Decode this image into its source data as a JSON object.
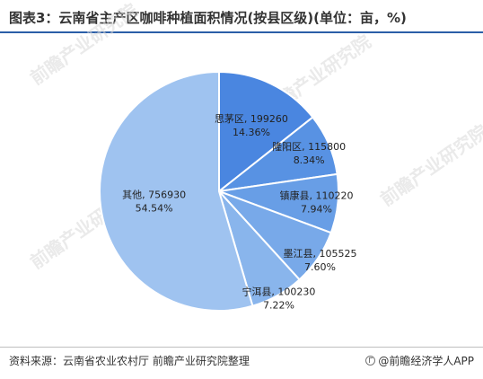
{
  "title": "图表3：云南省主产区咖啡种植面积情况(按县区级)(单位：亩，%)",
  "footer": {
    "source": "资料来源：云南省农业农村厅 前瞻产业研究院整理",
    "credit": "@前瞻经济学人APP"
  },
  "watermark": "前瞻产业研究院",
  "chart_data": {
    "type": "pie",
    "title": "图表3：云南省主产区咖啡种植面积情况(按县区级)(单位：亩，%)",
    "slices": [
      {
        "name": "思茅区",
        "value": 199260,
        "percent": "14.36%",
        "color": "#4a86e0"
      },
      {
        "name": "隆阳区",
        "value": 115800,
        "percent": "8.34%",
        "color": "#5892e3"
      },
      {
        "name": "镇康县",
        "value": 110220,
        "percent": "7.94%",
        "color": "#689ee6"
      },
      {
        "name": "墨江县",
        "value": 105525,
        "percent": "7.60%",
        "color": "#78a9e9"
      },
      {
        "name": "宁洱县",
        "value": 100230,
        "percent": "7.22%",
        "color": "#89b5ec"
      },
      {
        "name": "其他",
        "value": 756930,
        "percent": "54.54%",
        "color": "#9fc3f0"
      }
    ],
    "start_angle": "12 o'clock",
    "direction": "clockwise"
  }
}
